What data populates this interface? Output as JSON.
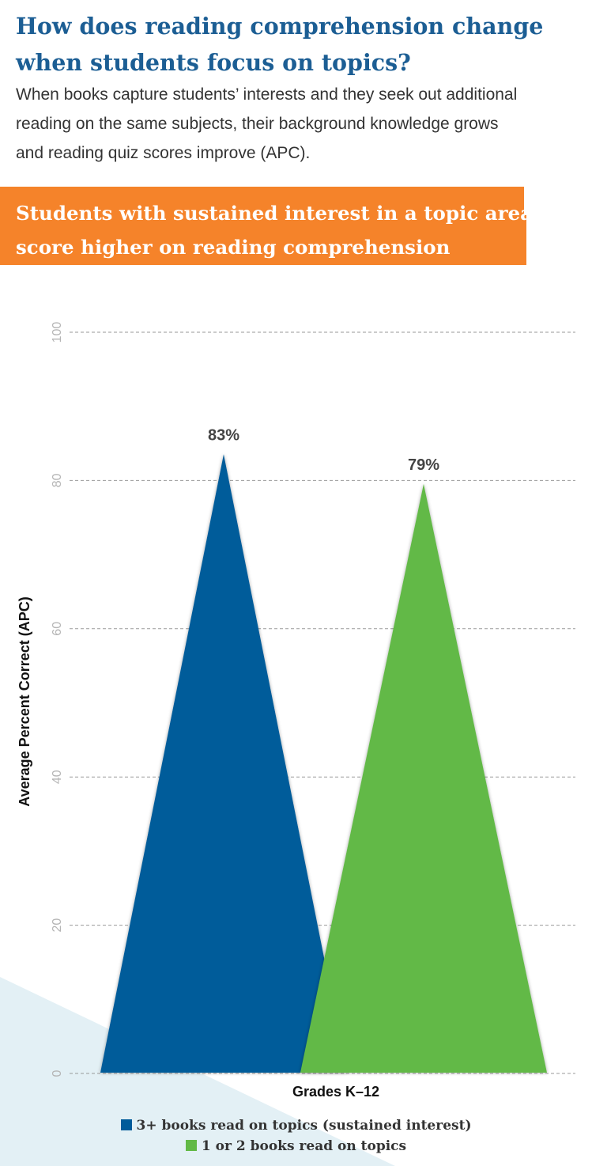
{
  "header": {
    "title": "How does reading comprehension change when students focus on topics?",
    "intro": "When books capture students’ interests and they seek out additional reading on the same subjects, their background knowledge grows and reading quiz scores improve (APC)."
  },
  "banner": {
    "text": "Students with sustained interest in a topic area score higher on reading comprehension",
    "color": "#f5832a"
  },
  "colors": {
    "title": "#1c5e94",
    "background_shape": "#e3f0f5"
  },
  "chart_data": {
    "type": "bar",
    "title": "",
    "xlabel": "Grades K–12",
    "ylabel": "Average Percent Correct (APC)",
    "ylim": [
      0,
      100
    ],
    "yticks": [
      "0",
      "20",
      "40",
      "60",
      "80",
      "100"
    ],
    "grid": true,
    "legend_position": "bottom",
    "series": [
      {
        "name": "3+ books read on topics (sustained interest)",
        "value": 83,
        "label": "83%",
        "color": "#005b9a"
      },
      {
        "name": "1 or 2 books read on topics",
        "value": 79,
        "label": "79%",
        "color": "#62b946"
      }
    ]
  }
}
